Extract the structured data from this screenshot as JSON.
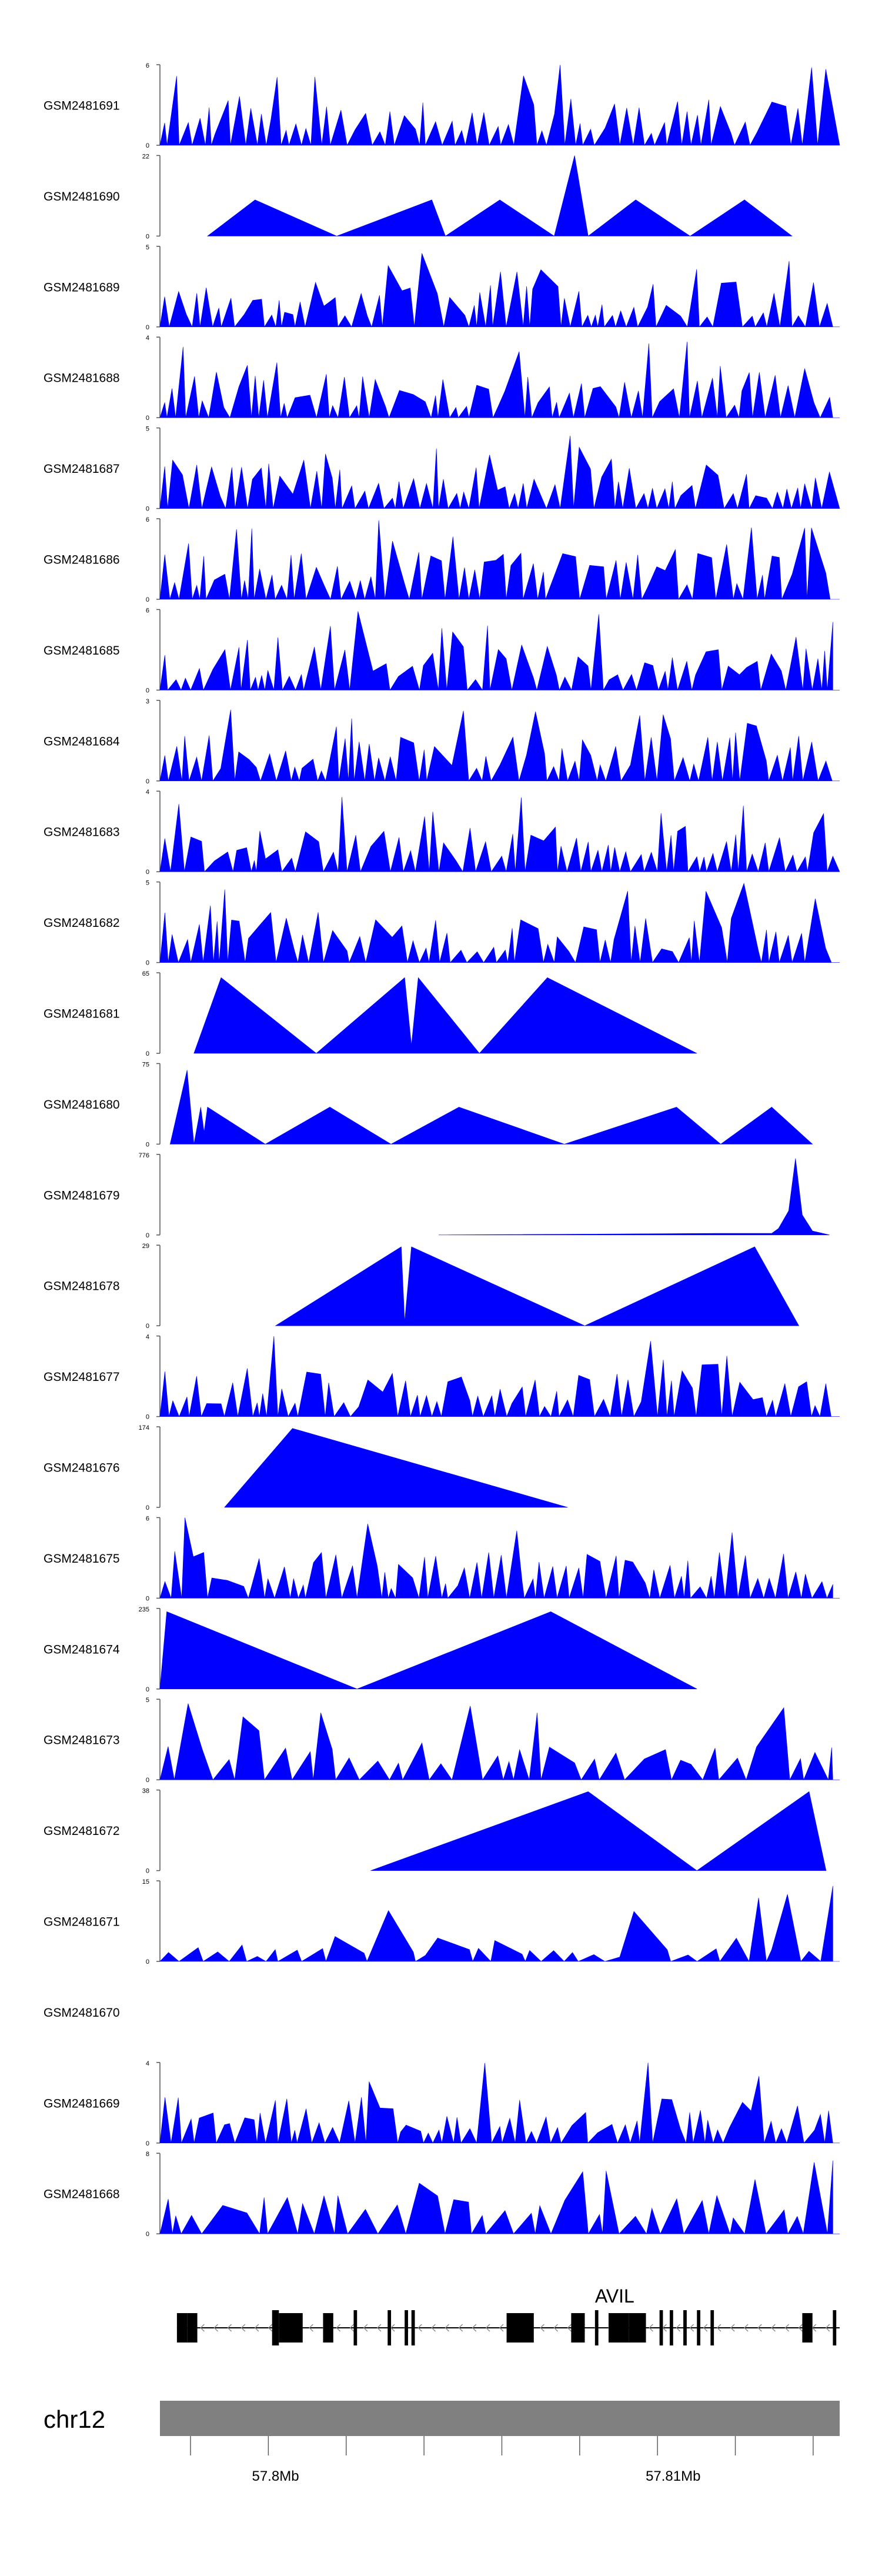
{
  "chart_data": {
    "type": "area",
    "genome": "chr12",
    "gene_label": "AVIL",
    "x_ticks": [
      "57.8Mb",
      "57.81Mb"
    ],
    "colors": {
      "coverage": "#0000ff",
      "axis": "#555555",
      "chromosome": "#808080",
      "gene": "#000000"
    },
    "tracks": [
      {
        "name": "GSM2481691",
        "ymax": 6,
        "pattern": "dense",
        "seed": 11
      },
      {
        "name": "GSM2481690",
        "ymax": 22,
        "peaks": [
          [
            0.07,
            0
          ],
          [
            0.14,
            0.45
          ],
          [
            0.26,
            0
          ],
          [
            0.4,
            0.45
          ],
          [
            0.42,
            0
          ],
          [
            0.5,
            0.45
          ],
          [
            0.58,
            0
          ],
          [
            0.61,
            1
          ],
          [
            0.63,
            0
          ],
          [
            0.7,
            0.45
          ],
          [
            0.78,
            0
          ],
          [
            0.86,
            0.45
          ],
          [
            0.93,
            0
          ]
        ]
      },
      {
        "name": "GSM2481689",
        "ymax": 5,
        "pattern": "dense",
        "seed": 23
      },
      {
        "name": "GSM2481688",
        "ymax": 4,
        "pattern": "dense",
        "seed": 37
      },
      {
        "name": "GSM2481687",
        "ymax": 5,
        "pattern": "dense",
        "seed": 41
      },
      {
        "name": "GSM2481686",
        "ymax": 6,
        "pattern": "dense",
        "seed": 53
      },
      {
        "name": "GSM2481685",
        "ymax": 6,
        "pattern": "dense",
        "seed": 67
      },
      {
        "name": "GSM2481684",
        "ymax": 3,
        "pattern": "dense",
        "seed": 71
      },
      {
        "name": "GSM2481683",
        "ymax": 4,
        "pattern": "dense",
        "seed": 83
      },
      {
        "name": "GSM2481682",
        "ymax": 5,
        "pattern": "dense",
        "seed": 97
      },
      {
        "name": "GSM2481681",
        "ymax": 65,
        "peaks": [
          [
            0.05,
            0
          ],
          [
            0.09,
            0.94
          ],
          [
            0.23,
            0
          ],
          [
            0.36,
            0.94
          ],
          [
            0.37,
            0.1
          ],
          [
            0.38,
            0.94
          ],
          [
            0.47,
            0
          ],
          [
            0.57,
            0.94
          ],
          [
            0.79,
            0
          ]
        ]
      },
      {
        "name": "GSM2481680",
        "ymax": 75,
        "peaks": [
          [
            0.015,
            0
          ],
          [
            0.04,
            0.92
          ],
          [
            0.05,
            0
          ],
          [
            0.06,
            0.46
          ],
          [
            0.065,
            0.15
          ],
          [
            0.07,
            0.46
          ],
          [
            0.155,
            0
          ],
          [
            0.25,
            0.46
          ],
          [
            0.34,
            0
          ],
          [
            0.44,
            0.46
          ],
          [
            0.595,
            0
          ],
          [
            0.76,
            0.46
          ],
          [
            0.825,
            0
          ],
          [
            0.9,
            0.46
          ],
          [
            0.96,
            0
          ]
        ]
      },
      {
        "name": "GSM2481679",
        "ymax": 776,
        "peaks": [
          [
            0.41,
            0
          ],
          [
            0.82,
            0.02
          ],
          [
            0.9,
            0.02
          ],
          [
            0.91,
            0.08
          ],
          [
            0.925,
            0.3
          ],
          [
            0.935,
            0.95
          ],
          [
            0.945,
            0.25
          ],
          [
            0.96,
            0.05
          ],
          [
            0.985,
            0
          ]
        ]
      },
      {
        "name": "GSM2481678",
        "ymax": 29,
        "peaks": [
          [
            0.17,
            0
          ],
          [
            0.355,
            0.98
          ],
          [
            0.36,
            0.05
          ],
          [
            0.37,
            0.98
          ],
          [
            0.625,
            0
          ],
          [
            0.875,
            0.98
          ],
          [
            0.94,
            0
          ]
        ]
      },
      {
        "name": "GSM2481677",
        "ymax": 4,
        "pattern": "dense",
        "seed": 101
      },
      {
        "name": "GSM2481676",
        "ymax": 174,
        "peaks": [
          [
            0.095,
            0
          ],
          [
            0.195,
            0.98
          ],
          [
            0.6,
            0
          ]
        ]
      },
      {
        "name": "GSM2481675",
        "ymax": 6,
        "pattern": "dense",
        "seed": 113
      },
      {
        "name": "GSM2481674",
        "ymax": 235,
        "peaks": [
          [
            0,
            0
          ],
          [
            0.01,
            0.96
          ],
          [
            0.29,
            0
          ],
          [
            0.575,
            0.96
          ],
          [
            0.79,
            0
          ]
        ]
      },
      {
        "name": "GSM2481673",
        "ymax": 5,
        "pattern": "sparse",
        "seed": 127
      },
      {
        "name": "GSM2481672",
        "ymax": 38,
        "peaks": [
          [
            0.31,
            0
          ],
          [
            0.63,
            0.98
          ],
          [
            0.79,
            0
          ],
          [
            0.955,
            0.98
          ],
          [
            0.98,
            0
          ]
        ]
      },
      {
        "name": "GSM2481671",
        "ymax": 15,
        "pattern": "low",
        "seed": 131
      },
      {
        "name": "GSM2481670",
        "ymax": 0,
        "peaks": []
      },
      {
        "name": "GSM2481669",
        "ymax": 4,
        "pattern": "dense",
        "seed": 139
      },
      {
        "name": "GSM2481668",
        "ymax": 8,
        "pattern": "sparse",
        "seed": 149
      }
    ],
    "gene_exons": [
      [
        0.025,
        0.04
      ],
      [
        0.04,
        0.055
      ],
      [
        0.165,
        0.175
      ],
      [
        0.175,
        0.21
      ],
      [
        0.24,
        0.255
      ],
      [
        0.285,
        0.29
      ],
      [
        0.335,
        0.34
      ],
      [
        0.36,
        0.365
      ],
      [
        0.37,
        0.375
      ],
      [
        0.51,
        0.55
      ],
      [
        0.605,
        0.625
      ],
      [
        0.64,
        0.645
      ],
      [
        0.66,
        0.69
      ],
      [
        0.69,
        0.715
      ],
      [
        0.735,
        0.74
      ],
      [
        0.75,
        0.755
      ],
      [
        0.77,
        0.775
      ],
      [
        0.79,
        0.795
      ],
      [
        0.81,
        0.815
      ],
      [
        0.945,
        0.96
      ],
      [
        0.99,
        0.995
      ]
    ]
  }
}
